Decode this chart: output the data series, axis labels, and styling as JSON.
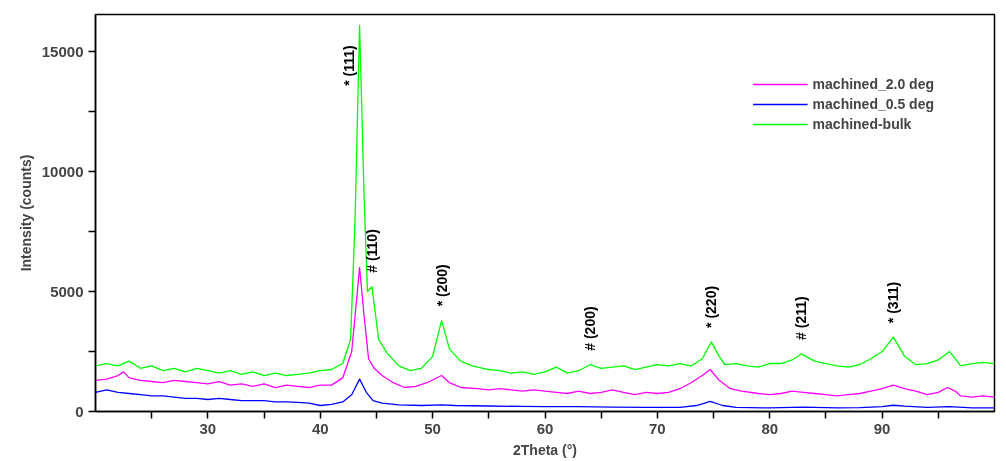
{
  "chart_data": {
    "type": "line",
    "xlabel": "2Theta (°)",
    "ylabel": "Intensity (counts)",
    "xlim": [
      20,
      100
    ],
    "ylim": [
      0,
      16550
    ],
    "xticks": [
      {
        "value": 25,
        "label": null
      },
      30,
      {
        "value": 35,
        "label": null
      },
      40,
      {
        "value": 45,
        "label": null
      },
      50,
      {
        "value": 55,
        "label": null
      },
      60,
      {
        "value": 65,
        "label": null
      },
      70,
      {
        "value": 75,
        "label": null
      },
      80,
      {
        "value": 85,
        "label": null
      },
      90,
      {
        "value": 95,
        "label": null
      }
    ],
    "yticks": [
      0,
      {
        "value": 2500,
        "label": null
      },
      5000,
      {
        "value": 7500,
        "label": null
      },
      10000,
      {
        "value": 12500,
        "label": null
      },
      15000
    ],
    "grid": false,
    "legend": "top right",
    "marker": "none",
    "line_style": "solid",
    "series": [
      {
        "name": "machined_2.0 deg",
        "color": "#ff00ff",
        "x": [
          20,
          21,
          22,
          22.5,
          23,
          24,
          25,
          26,
          27,
          28,
          29,
          30,
          31,
          32,
          33,
          34,
          35,
          36,
          37,
          38,
          39,
          40,
          41,
          42,
          42.8,
          43.2,
          43.5,
          43.9,
          44.3,
          44.8,
          45.5,
          46.5,
          47.5,
          48.5,
          49.5,
          50.8,
          51.5,
          52.5,
          54,
          55,
          56,
          57,
          58,
          59,
          60,
          61,
          62,
          63,
          64,
          65,
          66,
          67,
          68,
          69,
          70,
          71,
          72,
          73,
          74,
          74.7,
          75.5,
          76.5,
          77.5,
          79,
          80,
          81,
          82,
          83,
          84,
          85,
          86,
          87,
          88,
          89,
          90,
          91,
          92,
          93,
          94,
          95,
          95.8,
          96.5,
          97,
          98,
          99,
          100
        ],
        "values": [
          1300,
          1350,
          1500,
          1650,
          1400,
          1300,
          1250,
          1200,
          1300,
          1250,
          1200,
          1150,
          1250,
          1100,
          1150,
          1050,
          1150,
          1000,
          1100,
          1050,
          1000,
          1100,
          1100,
          1400,
          2500,
          4500,
          6000,
          4000,
          2200,
          1800,
          1500,
          1200,
          1000,
          1050,
          1200,
          1500,
          1200,
          1000,
          950,
          900,
          950,
          900,
          850,
          900,
          850,
          800,
          750,
          850,
          750,
          800,
          900,
          800,
          700,
          800,
          750,
          800,
          950,
          1200,
          1500,
          1750,
          1300,
          950,
          850,
          750,
          700,
          750,
          850,
          800,
          750,
          700,
          650,
          700,
          750,
          850,
          950,
          1100,
          950,
          850,
          700,
          800,
          1000,
          850,
          650,
          600,
          650,
          600
        ]
      },
      {
        "name": "machined_0.5 deg",
        "color": "#0000ff",
        "x": [
          20,
          21,
          22,
          23,
          24,
          25,
          26,
          27,
          28,
          29,
          30,
          31,
          32,
          33,
          34,
          35,
          36,
          37,
          38,
          39,
          40,
          41,
          42,
          42.8,
          43.5,
          44.1,
          44.7,
          45.5,
          47,
          49,
          50.8,
          52,
          55,
          58,
          60,
          63,
          66,
          69,
          72,
          73.5,
          74.7,
          75.8,
          77,
          80,
          83,
          86,
          88,
          90,
          91,
          92,
          94,
          96,
          98,
          100
        ],
        "values": [
          800,
          900,
          800,
          750,
          700,
          650,
          650,
          600,
          550,
          550,
          500,
          550,
          500,
          450,
          450,
          450,
          400,
          400,
          380,
          350,
          250,
          300,
          400,
          700,
          1350,
          800,
          450,
          350,
          280,
          250,
          280,
          250,
          230,
          210,
          200,
          200,
          180,
          170,
          170,
          250,
          420,
          250,
          170,
          150,
          180,
          150,
          160,
          200,
          260,
          220,
          170,
          200,
          150,
          150
        ]
      },
      {
        "name": "machined-bulk",
        "color": "#00ff00",
        "x": [
          20,
          21,
          22,
          23,
          24,
          25,
          26,
          27,
          28,
          29,
          30,
          31,
          32,
          33,
          34,
          35,
          36,
          37,
          38,
          39,
          40,
          41,
          42,
          42.7,
          43.1,
          43.5,
          43.9,
          44.2,
          44.6,
          45.2,
          46,
          47,
          48,
          49,
          50,
          50.8,
          51.5,
          52.5,
          53.5,
          55,
          56,
          57,
          58,
          59,
          60,
          61,
          62,
          63,
          64,
          65,
          66,
          67,
          68,
          69,
          70,
          71,
          72,
          73,
          74,
          74.8,
          75.5,
          76,
          77,
          78,
          79,
          80,
          81,
          82,
          82.8,
          84,
          85,
          86,
          87,
          88,
          89,
          90,
          91,
          92,
          93,
          94,
          95,
          96,
          97,
          98,
          99,
          100
        ],
        "values": [
          1900,
          2000,
          1900,
          2100,
          1800,
          1900,
          1700,
          1800,
          1650,
          1800,
          1700,
          1600,
          1700,
          1550,
          1650,
          1500,
          1600,
          1500,
          1550,
          1600,
          1700,
          1750,
          2000,
          3000,
          8000,
          16100,
          9000,
          5000,
          5200,
          3000,
          2400,
          1900,
          1700,
          1800,
          2300,
          3800,
          2600,
          2100,
          1900,
          1750,
          1700,
          1600,
          1650,
          1550,
          1650,
          1850,
          1600,
          1700,
          1950,
          1800,
          1850,
          1900,
          1750,
          1850,
          1950,
          1900,
          2000,
          1900,
          2200,
          2900,
          2300,
          1950,
          2000,
          1900,
          1850,
          2000,
          2000,
          2150,
          2400,
          2100,
          2000,
          1900,
          1850,
          1950,
          2200,
          2500,
          3100,
          2300,
          1950,
          2000,
          2150,
          2500,
          1900,
          2000,
          2050,
          2000
        ]
      }
    ],
    "annotations": [
      {
        "text": "* (111)",
        "x": 43.5,
        "y": 16100
      },
      {
        "text": "# (110)",
        "x": 44.6,
        "y": 5200
      },
      {
        "text": "* (200)",
        "x": 50.8,
        "y": 3800
      },
      {
        "text": "# (200)",
        "x": 64,
        "y": 1950
      },
      {
        "text": "* (220)",
        "x": 74.8,
        "y": 2900
      },
      {
        "text": "# (211)",
        "x": 82.8,
        "y": 2400
      },
      {
        "text": "* (311)",
        "x": 91,
        "y": 3100
      }
    ]
  }
}
